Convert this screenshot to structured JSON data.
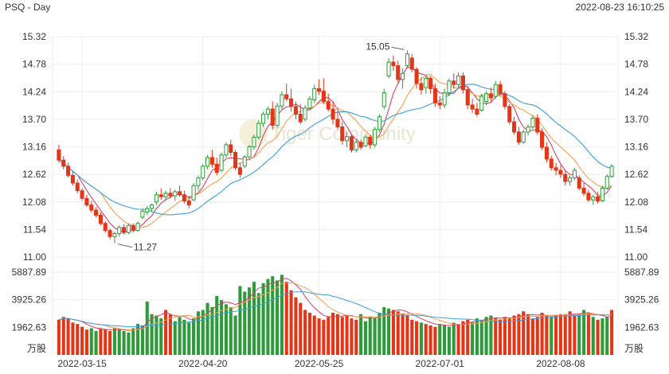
{
  "header": {
    "symbol_period": "PSQ - Day",
    "timestamp": "2022-08-23 16:10:25"
  },
  "watermark": {
    "text": "Tiger Community"
  },
  "colors": {
    "up": "#2e9b3a",
    "down": "#e53517",
    "ma5": "#d3406a",
    "ma10": "#f4a04f",
    "ma20": "#3aa0d8",
    "grid": "#eeeeee"
  },
  "chart_data": [
    {
      "type": "candlestick",
      "title": "",
      "ylim": [
        11.0,
        15.32
      ],
      "y_ticks": [
        "15.32",
        "14.78",
        "14.24",
        "13.70",
        "13.16",
        "12.62",
        "12.08",
        "11.54",
        "11.00"
      ],
      "x_ticks": [
        "2022-03-15",
        "2022-04-20",
        "2022-05-25",
        "2022-07-01",
        "2022-08-08"
      ],
      "annotations": [
        {
          "label": "15.05",
          "value": 15.05,
          "kind": "high"
        },
        {
          "label": "11.27",
          "value": 11.27,
          "kind": "low"
        }
      ],
      "candles": [
        [
          13.1,
          13.2,
          12.85,
          12.9
        ],
        [
          12.9,
          12.98,
          12.72,
          12.78
        ],
        [
          12.78,
          12.85,
          12.56,
          12.6
        ],
        [
          12.6,
          12.68,
          12.4,
          12.45
        ],
        [
          12.45,
          12.52,
          12.25,
          12.3
        ],
        [
          12.3,
          12.35,
          12.1,
          12.15
        ],
        [
          12.15,
          12.22,
          11.98,
          12.02
        ],
        [
          12.02,
          12.1,
          11.88,
          11.92
        ],
        [
          11.92,
          11.98,
          11.78,
          11.82
        ],
        [
          11.82,
          11.88,
          11.62,
          11.66
        ],
        [
          11.66,
          11.7,
          11.48,
          11.52
        ],
        [
          11.52,
          11.56,
          11.35,
          11.4
        ],
        [
          11.4,
          11.5,
          11.27,
          11.46
        ],
        [
          11.46,
          11.62,
          11.4,
          11.58
        ],
        [
          11.58,
          11.64,
          11.44,
          11.48
        ],
        [
          11.48,
          11.66,
          11.45,
          11.62
        ],
        [
          11.62,
          11.66,
          11.48,
          11.52
        ],
        [
          11.52,
          11.7,
          11.5,
          11.66
        ],
        [
          11.78,
          11.95,
          11.74,
          11.9
        ],
        [
          11.88,
          12.0,
          11.82,
          11.95
        ],
        [
          11.95,
          12.05,
          11.88,
          12.02
        ],
        [
          12.08,
          12.28,
          12.02,
          12.22
        ],
        [
          12.22,
          12.35,
          12.12,
          12.18
        ],
        [
          12.18,
          12.3,
          12.1,
          12.25
        ],
        [
          12.25,
          12.35,
          12.15,
          12.2
        ],
        [
          12.2,
          12.32,
          12.1,
          12.28
        ],
        [
          12.28,
          12.4,
          12.18,
          12.22
        ],
        [
          12.22,
          12.3,
          12.05,
          12.1
        ],
        [
          12.1,
          12.2,
          11.95,
          12.02
        ],
        [
          12.12,
          12.45,
          12.1,
          12.4
        ],
        [
          12.4,
          12.6,
          12.3,
          12.55
        ],
        [
          12.55,
          12.82,
          12.5,
          12.78
        ],
        [
          12.78,
          13.0,
          12.72,
          12.95
        ],
        [
          12.95,
          13.1,
          12.75,
          12.82
        ],
        [
          12.82,
          12.95,
          12.6,
          12.66
        ],
        [
          12.7,
          13.05,
          12.66,
          13.0
        ],
        [
          13.0,
          13.25,
          12.95,
          13.2
        ],
        [
          13.2,
          13.3,
          12.98,
          13.05
        ],
        [
          13.05,
          13.1,
          12.7,
          12.75
        ],
        [
          12.75,
          12.85,
          12.55,
          12.62
        ],
        [
          12.78,
          13.0,
          12.74,
          12.96
        ],
        [
          12.96,
          13.2,
          12.9,
          13.16
        ],
        [
          13.16,
          13.4,
          13.1,
          13.35
        ],
        [
          13.35,
          13.68,
          13.3,
          13.62
        ],
        [
          13.62,
          13.85,
          13.55,
          13.8
        ],
        [
          13.8,
          13.95,
          13.7,
          13.9
        ],
        [
          13.9,
          14.05,
          13.5,
          13.58
        ],
        [
          13.58,
          14.02,
          13.54,
          13.96
        ],
        [
          13.96,
          14.25,
          13.9,
          14.18
        ],
        [
          14.18,
          14.4,
          14.05,
          14.1
        ],
        [
          14.1,
          14.3,
          13.85,
          13.95
        ],
        [
          13.95,
          14.05,
          13.7,
          13.8
        ],
        [
          13.8,
          14.0,
          13.6,
          13.65
        ],
        [
          13.7,
          13.98,
          13.66,
          13.92
        ],
        [
          13.92,
          14.15,
          13.88,
          14.1
        ],
        [
          14.08,
          14.38,
          14.02,
          14.3
        ],
        [
          14.3,
          14.48,
          14.18,
          14.25
        ],
        [
          14.25,
          14.5,
          14.0,
          14.05
        ],
        [
          14.05,
          14.2,
          13.85,
          13.9
        ],
        [
          13.9,
          14.05,
          13.6,
          13.7
        ],
        [
          13.7,
          13.85,
          13.5,
          13.55
        ],
        [
          13.55,
          13.65,
          13.2,
          13.28
        ],
        [
          13.28,
          13.45,
          13.15,
          13.36
        ],
        [
          13.36,
          13.4,
          13.05,
          13.1
        ],
        [
          13.1,
          13.3,
          13.05,
          13.25
        ],
        [
          13.25,
          13.3,
          13.1,
          13.15
        ],
        [
          13.18,
          13.4,
          13.15,
          13.35
        ],
        [
          13.35,
          13.4,
          13.12,
          13.2
        ],
        [
          13.2,
          13.55,
          13.15,
          13.5
        ],
        [
          13.5,
          13.8,
          13.45,
          13.75
        ],
        [
          13.95,
          14.3,
          13.9,
          14.22
        ],
        [
          14.55,
          14.9,
          14.5,
          14.82
        ],
        [
          14.82,
          14.95,
          14.65,
          14.75
        ],
        [
          14.75,
          14.85,
          14.4,
          14.48
        ],
        [
          14.48,
          14.7,
          14.3,
          14.6
        ],
        [
          14.75,
          15.05,
          14.7,
          14.98
        ],
        [
          14.9,
          14.98,
          14.62,
          14.68
        ],
        [
          14.68,
          14.72,
          14.3,
          14.4
        ],
        [
          14.4,
          14.52,
          14.18,
          14.28
        ],
        [
          14.32,
          14.55,
          14.2,
          14.5
        ],
        [
          14.5,
          14.55,
          14.2,
          14.3
        ],
        [
          14.3,
          14.4,
          13.95,
          14.02
        ],
        [
          14.02,
          14.15,
          13.9,
          13.98
        ],
        [
          13.98,
          14.3,
          13.92,
          14.22
        ],
        [
          14.22,
          14.5,
          14.15,
          14.45
        ],
        [
          14.45,
          14.6,
          14.3,
          14.38
        ],
        [
          14.38,
          14.62,
          14.32,
          14.55
        ],
        [
          14.55,
          14.62,
          14.2,
          14.28
        ],
        [
          14.28,
          14.35,
          13.9,
          13.98
        ],
        [
          13.98,
          14.1,
          13.82,
          13.9
        ],
        [
          13.9,
          14.02,
          13.75,
          13.8
        ],
        [
          13.88,
          14.2,
          13.85,
          14.15
        ],
        [
          14.05,
          14.25,
          13.98,
          14.2
        ],
        [
          14.2,
          14.32,
          14.05,
          14.12
        ],
        [
          14.15,
          14.45,
          14.1,
          14.38
        ],
        [
          14.38,
          14.45,
          14.15,
          14.2
        ],
        [
          14.2,
          14.25,
          13.9,
          13.95
        ],
        [
          13.95,
          14.0,
          13.6,
          13.65
        ],
        [
          13.65,
          13.75,
          13.4,
          13.45
        ],
        [
          13.45,
          13.55,
          13.2,
          13.25
        ],
        [
          13.25,
          13.5,
          13.22,
          13.45
        ],
        [
          13.45,
          13.6,
          13.38,
          13.55
        ],
        [
          13.55,
          13.78,
          13.5,
          13.72
        ],
        [
          13.72,
          13.8,
          13.4,
          13.45
        ],
        [
          13.45,
          13.52,
          13.1,
          13.15
        ],
        [
          13.15,
          13.25,
          12.85,
          12.92
        ],
        [
          12.92,
          12.98,
          12.7,
          12.75
        ],
        [
          12.75,
          12.85,
          12.6,
          12.7
        ],
        [
          12.7,
          12.8,
          12.55,
          12.62
        ],
        [
          12.62,
          12.7,
          12.4,
          12.48
        ],
        [
          12.48,
          12.6,
          12.4,
          12.55
        ],
        [
          12.55,
          12.75,
          12.5,
          12.7
        ],
        [
          12.55,
          12.6,
          12.3,
          12.35
        ],
        [
          12.35,
          12.45,
          12.2,
          12.25
        ],
        [
          12.25,
          12.32,
          12.08,
          12.12
        ],
        [
          12.12,
          12.22,
          12.02,
          12.18
        ],
        [
          12.18,
          12.28,
          12.05,
          12.1
        ],
        [
          12.1,
          12.4,
          12.08,
          12.35
        ],
        [
          12.35,
          12.62,
          12.32,
          12.58
        ],
        [
          12.58,
          12.82,
          12.55,
          12.78
        ]
      ]
    },
    {
      "type": "bar",
      "title": "",
      "ylabel": "万股",
      "ylim": [
        0,
        5887.89
      ],
      "y_ticks": [
        "5887.89",
        "3925.26",
        "1962.63",
        "万股"
      ],
      "values": [
        2500,
        2700,
        2600,
        2300,
        2200,
        2000,
        1800,
        1900,
        1700,
        1900,
        1800,
        1700,
        1900,
        1800,
        1700,
        1600,
        1900,
        2200,
        2100,
        3800,
        2900,
        2800,
        2600,
        3200,
        2900,
        2400,
        2700,
        2500,
        2300,
        2600,
        3100,
        3200,
        3700,
        3400,
        4200,
        3900,
        3600,
        3400,
        2800,
        4900,
        4500,
        4800,
        5200,
        4400,
        5100,
        5400,
        5600,
        5300,
        5700,
        5200,
        4600,
        4100,
        3700,
        3200,
        3000,
        2800,
        2600,
        2500,
        2700,
        3000,
        2900,
        2700,
        2800,
        2600,
        2500,
        2900,
        2400,
        2700,
        2600,
        3000,
        3400,
        3300,
        3200,
        3100,
        2900,
        2800,
        2500,
        2400,
        2300,
        2200,
        2100,
        2000,
        2200,
        2100,
        2000,
        2300,
        2200,
        2400,
        2500,
        2300,
        2600,
        2500,
        2700,
        2800,
        2600,
        2500,
        2700,
        2600,
        2800,
        2900,
        3100,
        2900,
        2600,
        2700,
        3000,
        2800,
        2700,
        2800,
        2900,
        2900,
        3100,
        2800,
        2900,
        3200,
        3000,
        2700,
        2500,
        2600,
        2700,
        3200
      ],
      "directions": "d d d d d d d u u d d d u u u u u u u u u u u d d u u u u u u u u u u u u u u u u u u u u u u u u d d d d d d d d d d d d d d d d u u u u u u u d d d d d d u d d d u u u u d d d u u u u u d d d d d d d d d d d d u d d d d d u u d u d u u"
    }
  ]
}
